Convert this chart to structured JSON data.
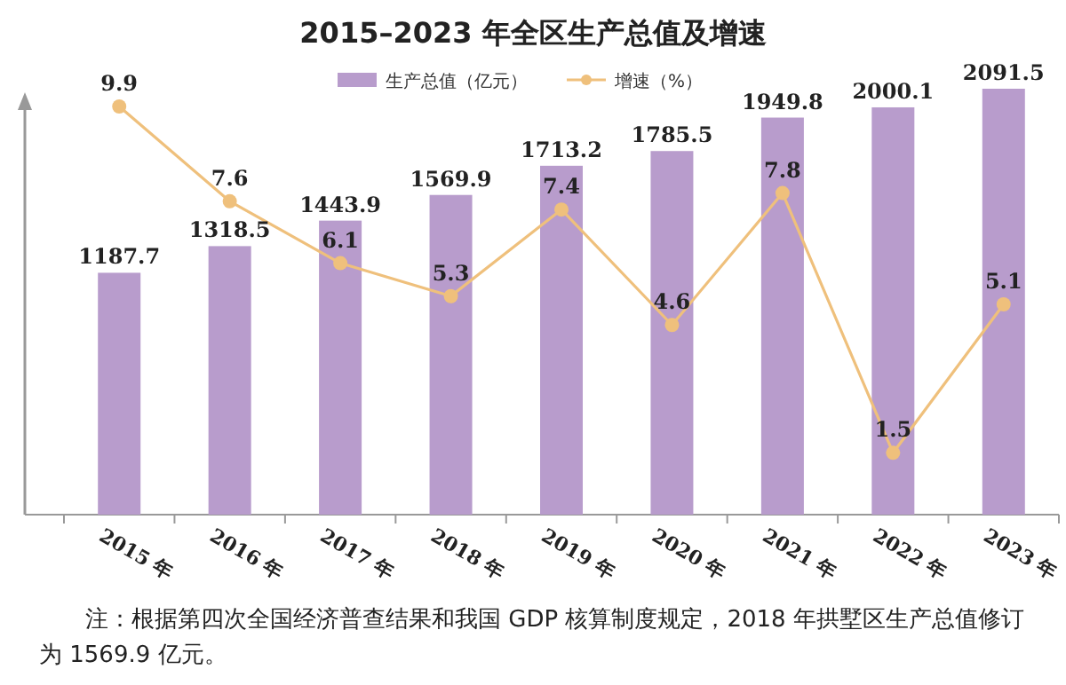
{
  "chart_data": {
    "type": "bar",
    "title": "2015–2023 年全区生产总值及增速",
    "categories": [
      "2015 年",
      "2016 年",
      "2017 年",
      "2018 年",
      "2019 年",
      "2020 年",
      "2021 年",
      "2022 年",
      "2023 年"
    ],
    "series": [
      {
        "name": "生产总值（亿元）",
        "color": "#b89ccc",
        "values": [
          1187.7,
          1318.5,
          1443.9,
          1569.9,
          1713.2,
          1785.5,
          1949.8,
          2000.1,
          2091.5
        ]
      },
      {
        "name": "增速（%）",
        "type": "line",
        "axis": "y2",
        "color": "#efc07c",
        "marker": "circle",
        "values": [
          9.9,
          7.6,
          6.1,
          5.3,
          7.4,
          4.6,
          7.8,
          1.5,
          5.1
        ]
      }
    ],
    "data_labels": true,
    "legend": "top",
    "annotations": [
      "注：根据第四次全国经济普查结果和我国 GDP 核算制度规定，2018 年拱墅区生产总值修订为 1569.9 亿元。"
    ]
  }
}
